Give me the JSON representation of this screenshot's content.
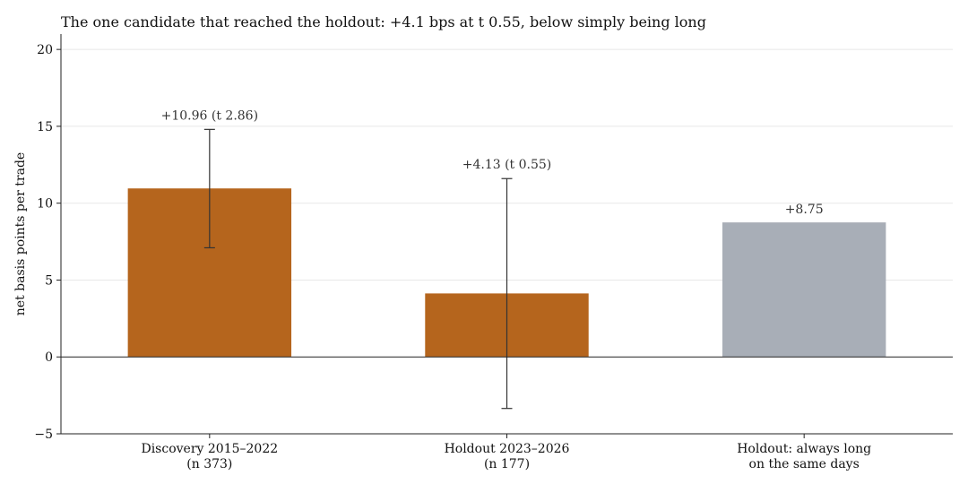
{
  "chart_data": {
    "type": "bar",
    "title": "The one candidate that reached the holdout: +4.1 bps at t 0.55, below simply being long",
    "ylabel": "net basis points per trade",
    "ylim": [
      -5,
      21
    ],
    "yticks": [
      -5,
      0,
      5,
      10,
      15,
      20
    ],
    "grid": true,
    "categories": [
      [
        "Discovery 2015–2022",
        "(n 373)"
      ],
      [
        "Holdout 2023–2026",
        "(n 177)"
      ],
      [
        "Holdout: always long",
        "on the same days"
      ]
    ],
    "values": [
      10.96,
      4.13,
      8.75
    ],
    "error_low": [
      7.1,
      -3.35,
      null
    ],
    "error_high": [
      14.8,
      11.6,
      null
    ],
    "data_labels": [
      "+10.96  (t 2.86)",
      "+4.13  (t 0.55)",
      "+8.75"
    ],
    "colors": [
      "#b5651d",
      "#b5651d",
      "#a8aeb7"
    ]
  }
}
